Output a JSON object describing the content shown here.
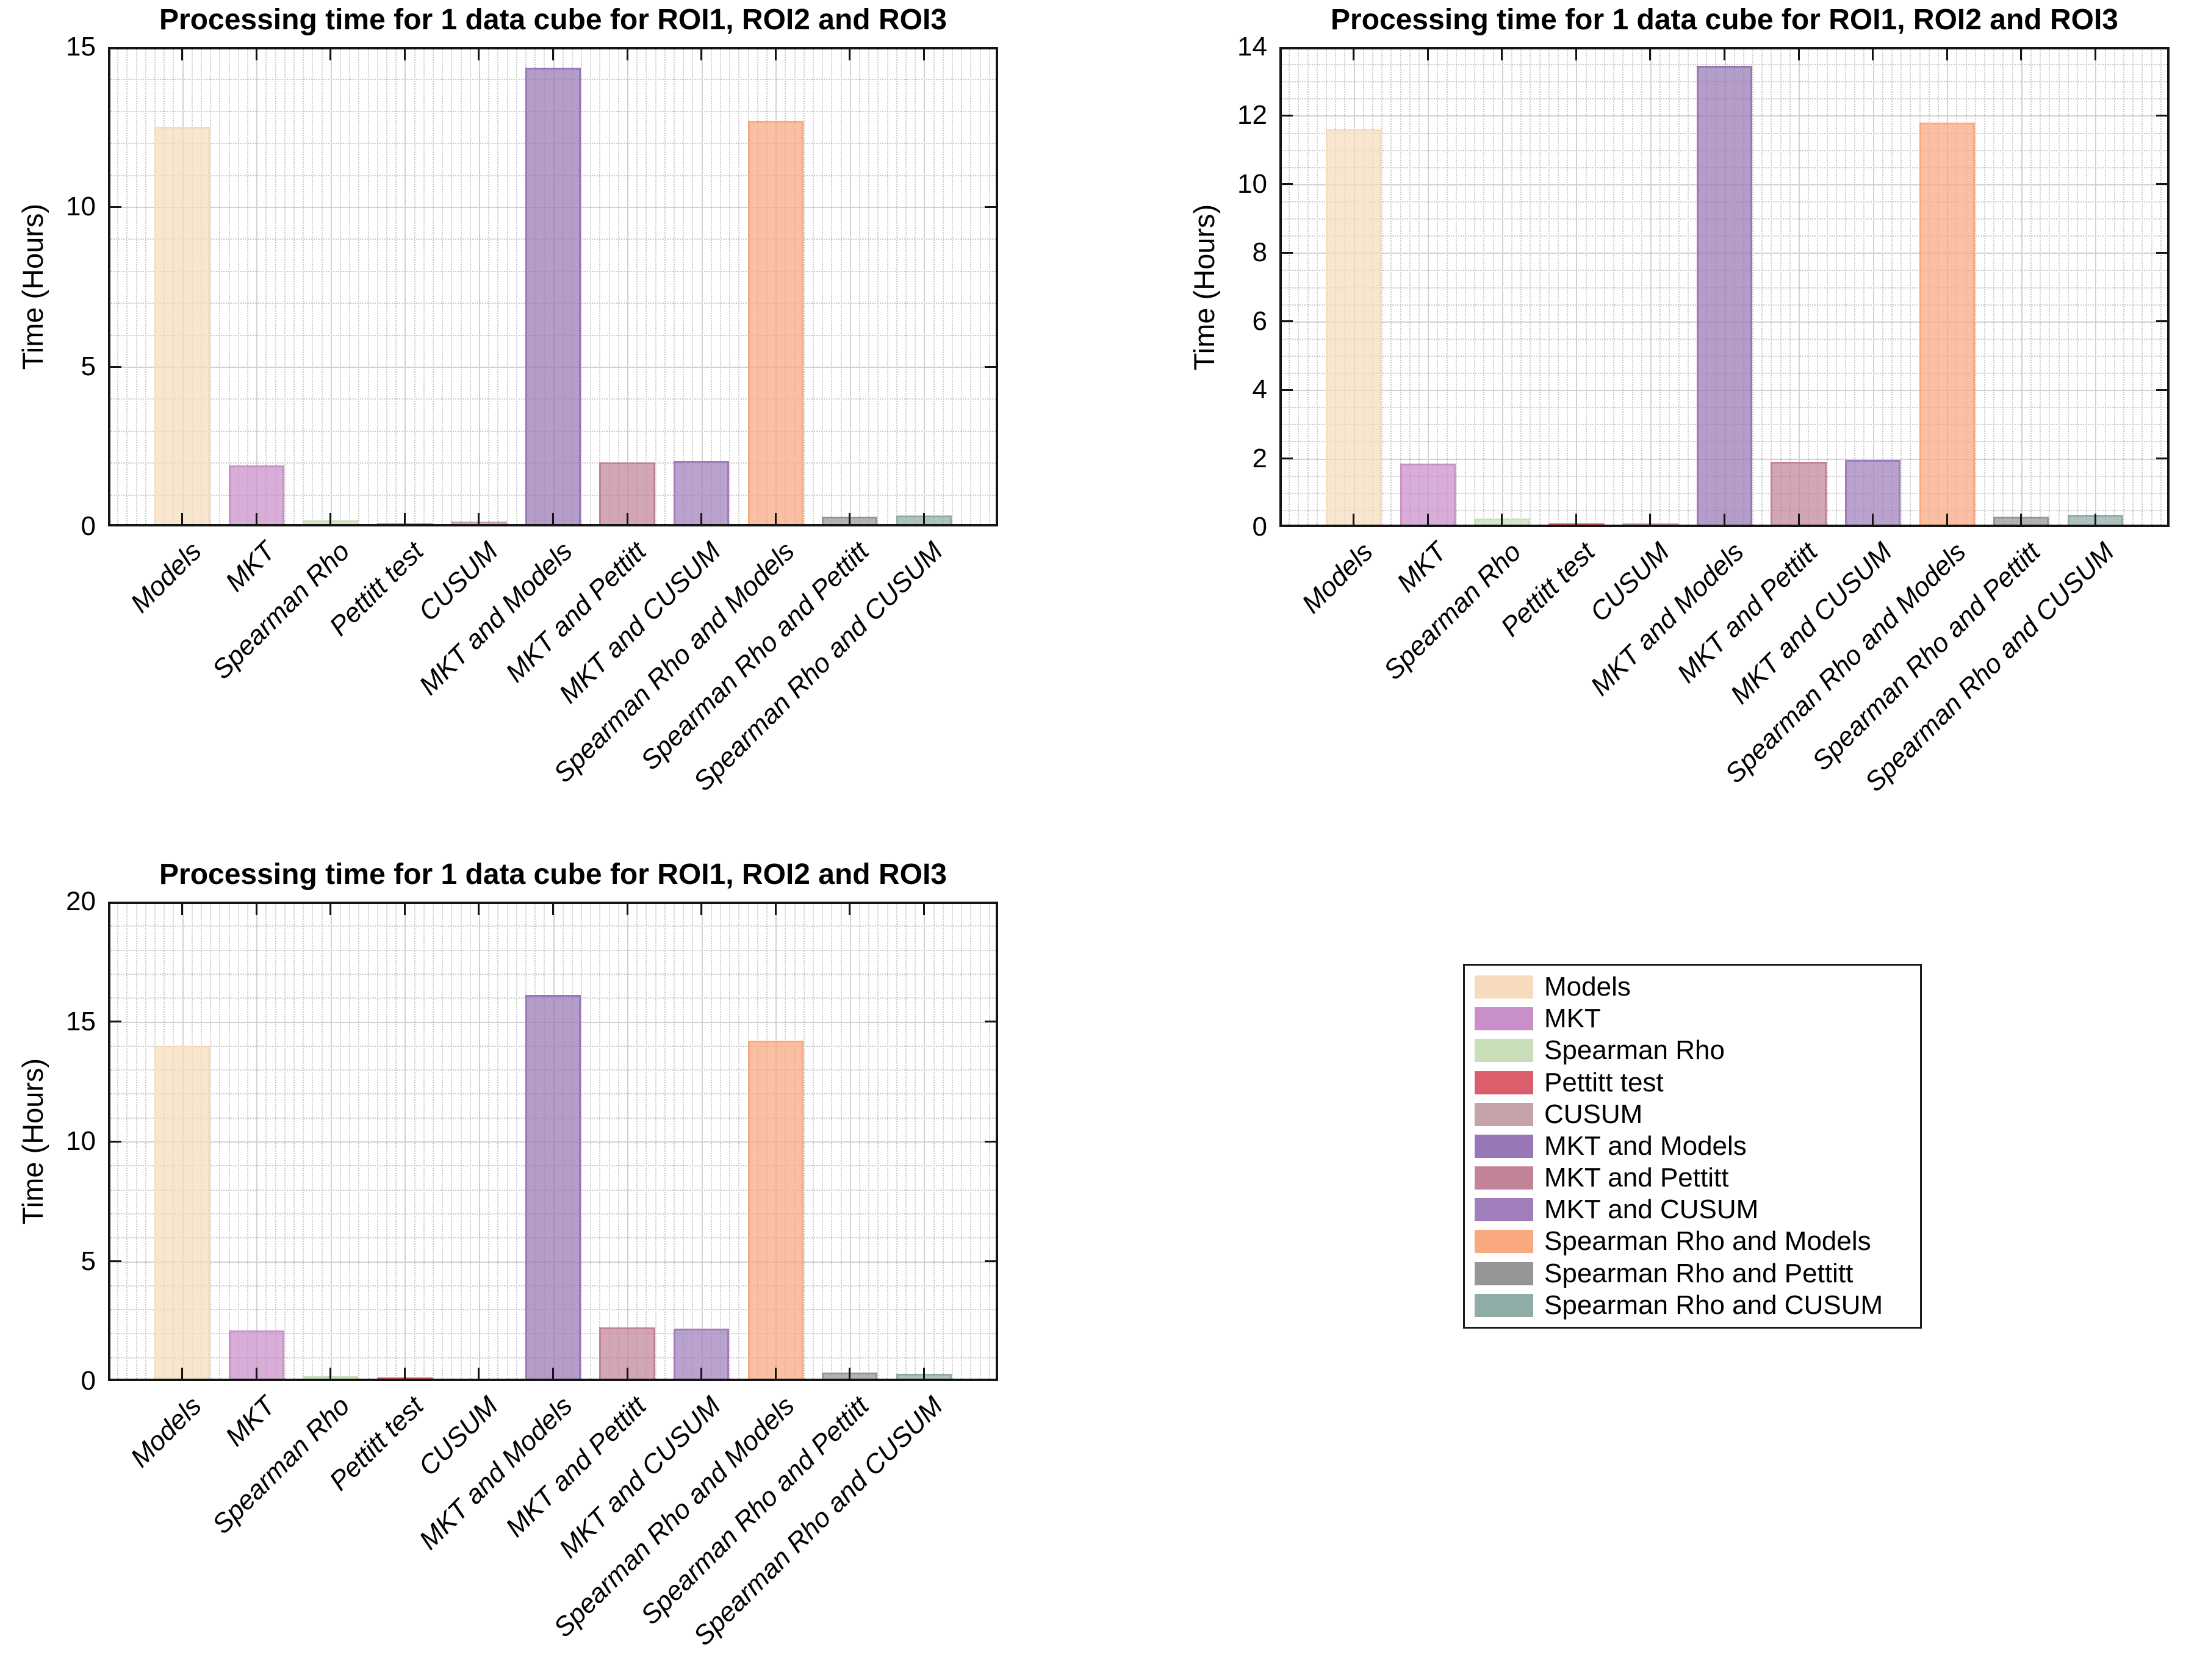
{
  "figure": {
    "background": "#ffffff",
    "axis_color": "#141414",
    "major_grid_color": "#d2d2d2",
    "minor_grid_color": "#c8c8c8"
  },
  "legend": {
    "entries": [
      {
        "label": "Models",
        "color": "#F6DCBC"
      },
      {
        "label": "MKT",
        "color": "#C98FC9"
      },
      {
        "label": "Spearman Rho",
        "color": "#C8DFB9"
      },
      {
        "label": "Pettitt test",
        "color": "#DB5E6C"
      },
      {
        "label": "CUSUM",
        "color": "#C6A3AA"
      },
      {
        "label": "MKT and Models",
        "color": "#9877B6"
      },
      {
        "label": "MKT and Pettitt",
        "color": "#C08399"
      },
      {
        "label": "MKT and CUSUM",
        "color": "#9F7EBB"
      },
      {
        "label": "Spearman Rho and Models",
        "color": "#FAA87F"
      },
      {
        "label": "Spearman Rho and Pettitt",
        "color": "#969696"
      },
      {
        "label": "Spearman Rho and CUSUM",
        "color": "#8FACA7"
      }
    ]
  },
  "chart_data": [
    {
      "type": "bar",
      "title": "Processing time for 1 data cube for ROI1, ROI2 and ROI3",
      "ylabel": "Time (Hours)",
      "xlabel": "",
      "categories": [
        "Models",
        "MKT",
        "Spearman Rho",
        "Pettitt test",
        "CUSUM",
        "MKT and Models",
        "MKT and Pettitt",
        "MKT and CUSUM",
        "Spearman Rho and Models",
        "Spearman Rho and Pettitt",
        "Spearman Rho and CUSUM"
      ],
      "values": [
        12.5,
        1.9,
        0.2,
        0.1,
        0.15,
        14.35,
        2.0,
        2.05,
        12.7,
        0.3,
        0.35
      ],
      "ylim": [
        0,
        15
      ],
      "yticks": [
        0,
        5,
        10,
        15
      ],
      "minor_y_step": 1,
      "grid": "major+minor",
      "legend_shown": false
    },
    {
      "type": "bar",
      "title": "Processing time for 1 data cube for ROI1, ROI2 and ROI3",
      "ylabel": "Time (Hours)",
      "xlabel": "",
      "categories": [
        "Models",
        "MKT",
        "Spearman Rho",
        "Pettitt test",
        "CUSUM",
        "MKT and Models",
        "MKT and Pettitt",
        "MKT and CUSUM",
        "Spearman Rho and Models",
        "Spearman Rho and Pettitt",
        "Spearman Rho and CUSUM"
      ],
      "values": [
        11.6,
        1.85,
        0.25,
        0.1,
        0.1,
        13.45,
        1.9,
        1.95,
        11.8,
        0.3,
        0.35
      ],
      "ylim": [
        0,
        14
      ],
      "yticks": [
        0,
        2,
        4,
        6,
        8,
        10,
        12,
        14
      ],
      "minor_y_step": 0.5,
      "grid": "major+minor",
      "legend_shown": false
    },
    {
      "type": "bar",
      "title": "Processing time for 1 data cube for ROI1, ROI2 and ROI3",
      "ylabel": "Time (Hours)",
      "xlabel": "",
      "categories": [
        "Models",
        "MKT",
        "Spearman Rho",
        "Pettitt test",
        "CUSUM",
        "MKT and Models",
        "MKT and Pettitt",
        "MKT and CUSUM",
        "Spearman Rho and Models",
        "Spearman Rho and Pettitt",
        "Spearman Rho and CUSUM"
      ],
      "values": [
        14.0,
        2.1,
        0.2,
        0.15,
        0.1,
        16.1,
        2.25,
        2.2,
        14.2,
        0.35,
        0.3
      ],
      "ylim": [
        0,
        20
      ],
      "yticks": [
        0,
        5,
        10,
        15,
        20
      ],
      "minor_y_step": 1,
      "grid": "major+minor",
      "legend_shown": true
    }
  ]
}
